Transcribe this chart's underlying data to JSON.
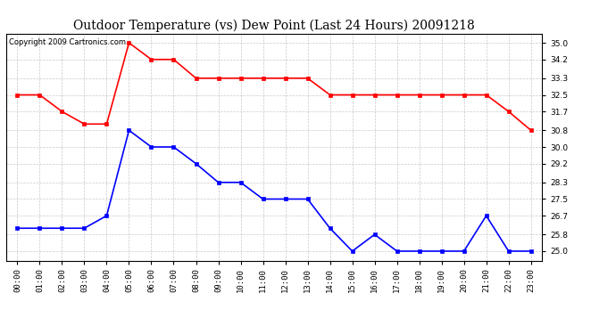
{
  "title": "Outdoor Temperature (vs) Dew Point (Last 24 Hours) 20091218",
  "copyright_text": "Copyright 2009 Cartronics.com",
  "hours": [
    "00:00",
    "01:00",
    "02:00",
    "03:00",
    "04:00",
    "05:00",
    "06:00",
    "07:00",
    "08:00",
    "09:00",
    "10:00",
    "11:00",
    "12:00",
    "13:00",
    "14:00",
    "15:00",
    "16:00",
    "17:00",
    "18:00",
    "19:00",
    "20:00",
    "21:00",
    "22:00",
    "23:00"
  ],
  "temp_red": [
    32.5,
    32.5,
    31.7,
    31.1,
    31.1,
    35.0,
    34.2,
    34.2,
    33.3,
    33.3,
    33.3,
    33.3,
    33.3,
    33.3,
    32.5,
    32.5,
    32.5,
    32.5,
    32.5,
    32.5,
    32.5,
    32.5,
    31.7,
    30.8
  ],
  "temp_blue": [
    26.1,
    26.1,
    26.1,
    26.1,
    26.7,
    30.8,
    30.0,
    30.0,
    29.2,
    28.3,
    28.3,
    27.5,
    27.5,
    27.5,
    26.1,
    25.0,
    25.8,
    25.0,
    25.0,
    25.0,
    25.0,
    26.7,
    25.0,
    25.0
  ],
  "ylim_min": 24.55,
  "ylim_max": 35.45,
  "yticks": [
    25.0,
    25.8,
    26.7,
    27.5,
    28.3,
    29.2,
    30.0,
    30.8,
    31.7,
    32.5,
    33.3,
    34.2,
    35.0
  ],
  "red_color": "#ff0000",
  "blue_color": "#0000ff",
  "marker": "s",
  "marker_size": 3,
  "linewidth": 1.2,
  "bg_color": "#ffffff",
  "grid_color": "#bbbbbb",
  "title_fontsize": 10,
  "copyright_fontsize": 6,
  "tick_fontsize": 6.5
}
